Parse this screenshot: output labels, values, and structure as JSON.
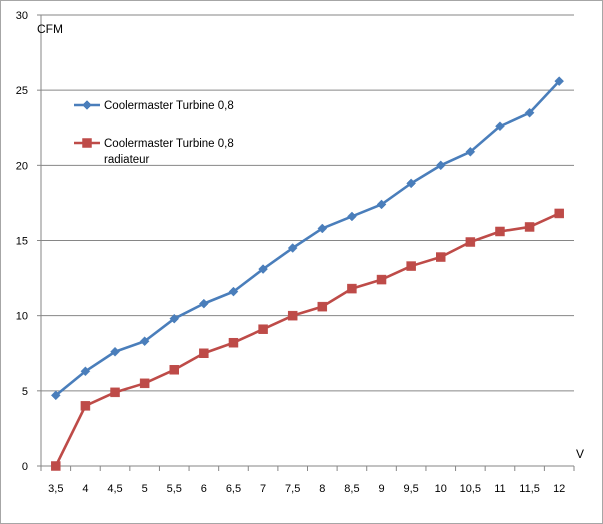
{
  "chart_data": {
    "type": "line",
    "x_unit_label": "V",
    "y_unit_label": "CFM",
    "categories": [
      "3,5",
      "4",
      "4,5",
      "5",
      "5,5",
      "6",
      "6,5",
      "7",
      "7,5",
      "8",
      "8,5",
      "9",
      "9,5",
      "10",
      "10,5",
      "11",
      "11,5",
      "12"
    ],
    "ylim": [
      0,
      30
    ],
    "yticks": [
      "0",
      "5",
      "10",
      "15",
      "20",
      "25",
      "30"
    ],
    "grid": {
      "horizontal": true,
      "vertical": false
    },
    "legend_position": "top-left",
    "series": [
      {
        "name_lines": [
          "Coolermaster Turbine 0,8"
        ],
        "color": "#4a7ebb",
        "marker": "diamond",
        "values": [
          4.7,
          6.3,
          7.6,
          8.3,
          9.8,
          10.8,
          11.6,
          13.1,
          14.5,
          15.8,
          16.6,
          17.4,
          18.8,
          20.0,
          20.9,
          22.6,
          23.5,
          25.6
        ]
      },
      {
        "name_lines": [
          "Coolermaster Turbine 0,8",
          "radiateur"
        ],
        "color": "#be4b48",
        "marker": "square",
        "values": [
          0,
          4.0,
          4.9,
          5.5,
          6.4,
          7.5,
          8.2,
          9.1,
          10.0,
          10.6,
          11.8,
          12.4,
          13.3,
          13.9,
          14.9,
          15.6,
          15.9,
          16.8
        ]
      }
    ]
  }
}
